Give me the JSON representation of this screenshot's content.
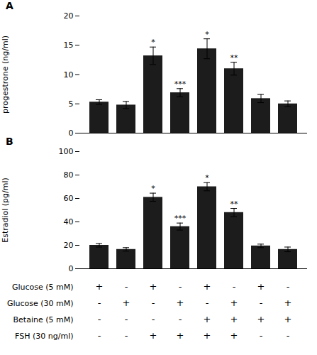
{
  "chart_data": [
    {
      "type": "bar",
      "title": "A",
      "categories": [
        null,
        null,
        null,
        null,
        null,
        null,
        null,
        null
      ],
      "values": [
        5.3,
        4.8,
        13.2,
        6.9,
        14.4,
        11.0,
        5.9,
        5.0
      ],
      "errors": [
        0.4,
        0.6,
        1.5,
        0.7,
        1.7,
        1.1,
        0.7,
        0.5
      ],
      "significance": [
        null,
        null,
        "*",
        "***",
        "*",
        "**",
        null,
        null
      ],
      "color": "#1c1c1c",
      "ylabel": "progestrone (ng/ml)",
      "ylim": [
        0,
        20
      ],
      "yticks": [
        0,
        5,
        10,
        15,
        20
      ],
      "grid": false,
      "tick_labels": "y"
    },
    {
      "type": "bar",
      "title": "B",
      "categories": [
        null,
        null,
        null,
        null,
        null,
        null,
        null,
        null
      ],
      "values": [
        20.0,
        16.5,
        61.0,
        36.0,
        70.0,
        48.0,
        19.5,
        16.5
      ],
      "errors": [
        1.5,
        1.5,
        3.5,
        3.0,
        3.5,
        3.5,
        1.5,
        2.0
      ],
      "significance": [
        null,
        null,
        "*",
        "***",
        "*",
        "**",
        null,
        null
      ],
      "color": "#1c1c1c",
      "ylabel": "Estradiol (pg/ml)",
      "ylim": [
        0,
        100
      ],
      "yticks": [
        0,
        20,
        40,
        60,
        80,
        100
      ],
      "grid": false,
      "tick_labels": "y"
    },
    {
      "type": "table",
      "rows": [
        {
          "label": "Glucose (5 mM)",
          "values": [
            "+",
            "-",
            "+",
            "-",
            "+",
            "-",
            "+",
            "-"
          ]
        },
        {
          "label": "Glucose (30 mM)",
          "values": [
            "-",
            "+",
            "-",
            "+",
            "-",
            "+",
            "-",
            "+"
          ]
        },
        {
          "label": "Betaine (5 mM)",
          "values": [
            "-",
            "-",
            "-",
            "-",
            "+",
            "+",
            "+",
            "+"
          ]
        },
        {
          "label": "FSH (30 ng/ml)",
          "values": [
            "-",
            "-",
            "+",
            "+",
            "+",
            "+",
            "-",
            "-"
          ]
        }
      ]
    }
  ]
}
